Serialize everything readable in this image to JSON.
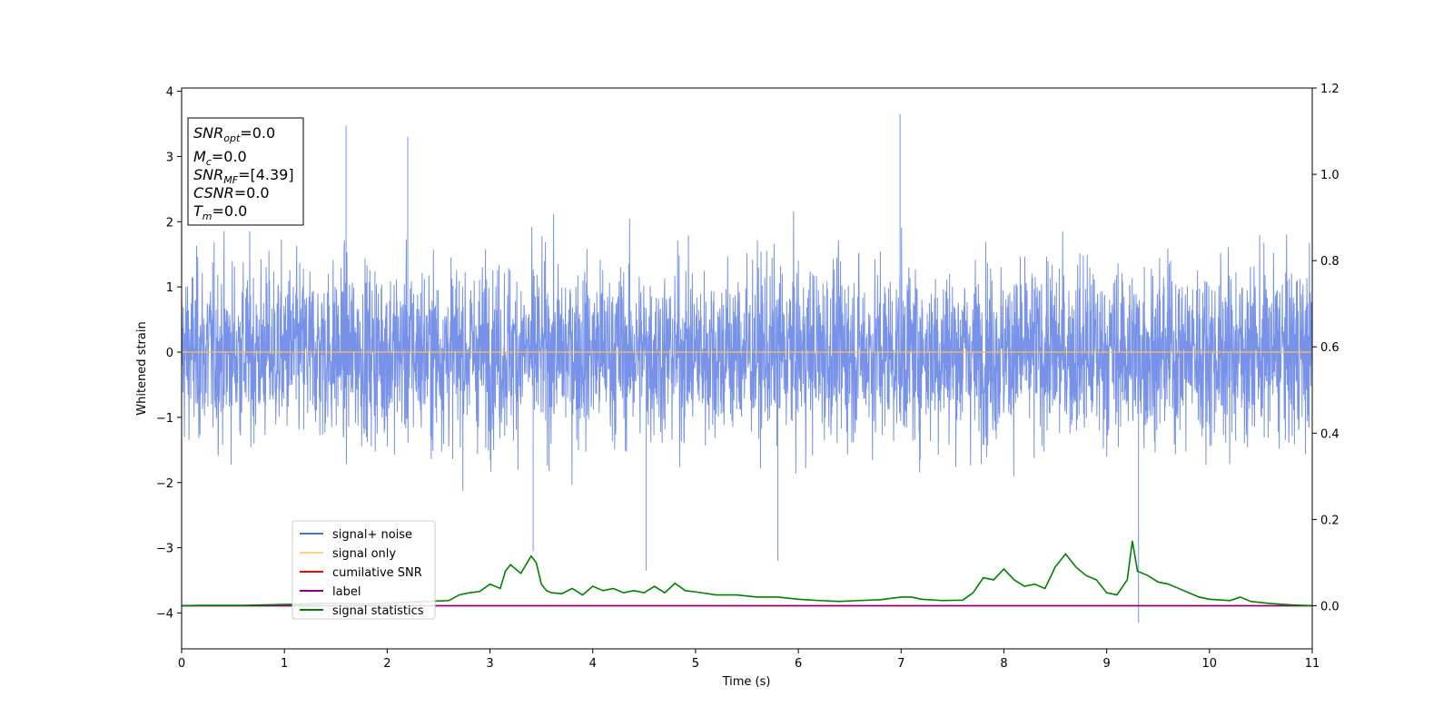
{
  "chart_data": {
    "type": "line",
    "xlabel": "Time (s)",
    "ylabel": "Whitened strain",
    "xlim": [
      0,
      11
    ],
    "ylim": [
      -4.55,
      4.05
    ],
    "y2lim": [
      -0.1,
      1.2
    ],
    "x_ticks": [
      "0",
      "1",
      "2",
      "3",
      "4",
      "5",
      "6",
      "7",
      "8",
      "9",
      "10",
      "11"
    ],
    "y_ticks": [
      "4",
      "3",
      "2",
      "1",
      "0",
      "−1",
      "−2",
      "−3",
      "−4"
    ],
    "y2_ticks": [
      "1.2",
      "1.0",
      "0.8",
      "0.6",
      "0.4",
      "0.2",
      "0.0"
    ],
    "info_box": [
      {
        "main": "SNR",
        "sub": "opt",
        "rest": "=0.0"
      },
      {
        "main": "M",
        "sub": "c",
        "rest": "=0.0"
      },
      {
        "main": "SNR",
        "sub": "MF",
        "rest": "=[4.39]"
      },
      {
        "main": "CSNR",
        "sub": "",
        "rest": "=0.0"
      },
      {
        "main": "T",
        "sub": "m",
        "rest": "=0.0"
      }
    ],
    "legend": {
      "placement": "lower-left",
      "entries": [
        "signal+ noise",
        "signal only",
        "cumilative SNR",
        "label",
        "signal statistics"
      ]
    },
    "series": [
      {
        "name": "signal+ noise",
        "axis": "left",
        "color": "#4a6ee0",
        "envelope_upper": 2.3,
        "envelope_lower": -2.3,
        "max": 3.65,
        "min": -4.15
      },
      {
        "name": "signal only",
        "axis": "left",
        "color": "#ffbf52",
        "x": [
          0,
          11
        ],
        "y": [
          0,
          0
        ]
      },
      {
        "name": "cumilative SNR",
        "axis": "right",
        "color": "#ff0000",
        "x": [
          0,
          11
        ],
        "y": [
          0,
          0
        ]
      },
      {
        "name": "label",
        "axis": "right",
        "color": "#800080",
        "x": [
          0,
          11
        ],
        "y": [
          0,
          0
        ]
      },
      {
        "name": "signal statistics",
        "axis": "right",
        "color": "#008000",
        "x": [
          0,
          0.2,
          0.4,
          0.6,
          0.8,
          1.0,
          1.2,
          1.4,
          1.6,
          1.8,
          2.0,
          2.2,
          2.4,
          2.6,
          2.7,
          2.8,
          2.9,
          3.0,
          3.1,
          3.15,
          3.2,
          3.3,
          3.4,
          3.45,
          3.5,
          3.55,
          3.6,
          3.7,
          3.8,
          3.9,
          4.0,
          4.1,
          4.2,
          4.3,
          4.4,
          4.5,
          4.6,
          4.7,
          4.8,
          4.9,
          5.0,
          5.2,
          5.4,
          5.6,
          5.8,
          6.0,
          6.2,
          6.4,
          6.6,
          6.8,
          7.0,
          7.1,
          7.2,
          7.4,
          7.6,
          7.7,
          7.8,
          7.9,
          8.0,
          8.1,
          8.2,
          8.3,
          8.4,
          8.5,
          8.6,
          8.7,
          8.8,
          8.9,
          9.0,
          9.1,
          9.2,
          9.25,
          9.3,
          9.4,
          9.5,
          9.6,
          9.7,
          9.8,
          9.9,
          10.0,
          10.2,
          10.3,
          10.4,
          10.6,
          10.8,
          11.0
        ],
        "y": [
          0.0,
          0.001,
          0.001,
          0.001,
          0.002,
          0.003,
          0.004,
          0.006,
          0.005,
          0.004,
          0.006,
          0.008,
          0.01,
          0.012,
          0.025,
          0.03,
          0.033,
          0.05,
          0.04,
          0.08,
          0.095,
          0.075,
          0.115,
          0.1,
          0.05,
          0.035,
          0.03,
          0.028,
          0.04,
          0.025,
          0.045,
          0.035,
          0.04,
          0.03,
          0.035,
          0.03,
          0.045,
          0.03,
          0.052,
          0.035,
          0.032,
          0.025,
          0.025,
          0.02,
          0.02,
          0.015,
          0.012,
          0.01,
          0.012,
          0.014,
          0.02,
          0.02,
          0.015,
          0.012,
          0.013,
          0.03,
          0.065,
          0.06,
          0.085,
          0.06,
          0.045,
          0.05,
          0.04,
          0.09,
          0.12,
          0.09,
          0.07,
          0.06,
          0.03,
          0.025,
          0.06,
          0.15,
          0.08,
          0.07,
          0.055,
          0.05,
          0.04,
          0.03,
          0.02,
          0.015,
          0.012,
          0.02,
          0.01,
          0.005,
          0.002,
          0.0
        ]
      }
    ],
    "grid": false
  }
}
